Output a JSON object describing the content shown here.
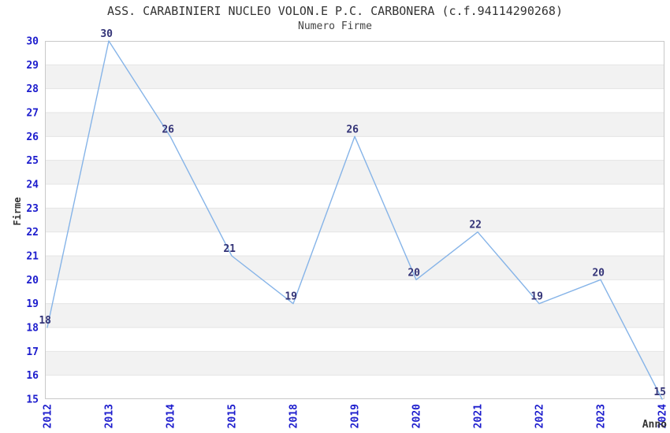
{
  "chart_data": {
    "type": "line",
    "title": "ASS. CARABINIERI NUCLEO VOLON.E P.C. CARBONERA (c.f.94114290268)",
    "subtitle": "Numero Firme",
    "xlabel": "Anno",
    "ylabel": "Firme",
    "categories": [
      "2012",
      "2013",
      "2014",
      "2015",
      "2018",
      "2019",
      "2020",
      "2021",
      "2022",
      "2023",
      "2024"
    ],
    "values": [
      18,
      30,
      26,
      21,
      19,
      26,
      20,
      22,
      19,
      20,
      15
    ],
    "series_name": "Numero Firme",
    "ylim": [
      15,
      30
    ],
    "ytick_step": 1,
    "legend": "none",
    "grid": "horizontal-bands-alternating",
    "x_tick_rotation": -90,
    "markers": "none",
    "colors": {
      "line": "#86B4E8",
      "data_label": "#333377",
      "tick_label": "#1C1CCD",
      "axis_title": "#333333",
      "band_fill": "#F2F2F2",
      "gridline": "#E4E4E4",
      "plot_border": "#C9C9C9",
      "background": "#FFFFFF"
    }
  }
}
